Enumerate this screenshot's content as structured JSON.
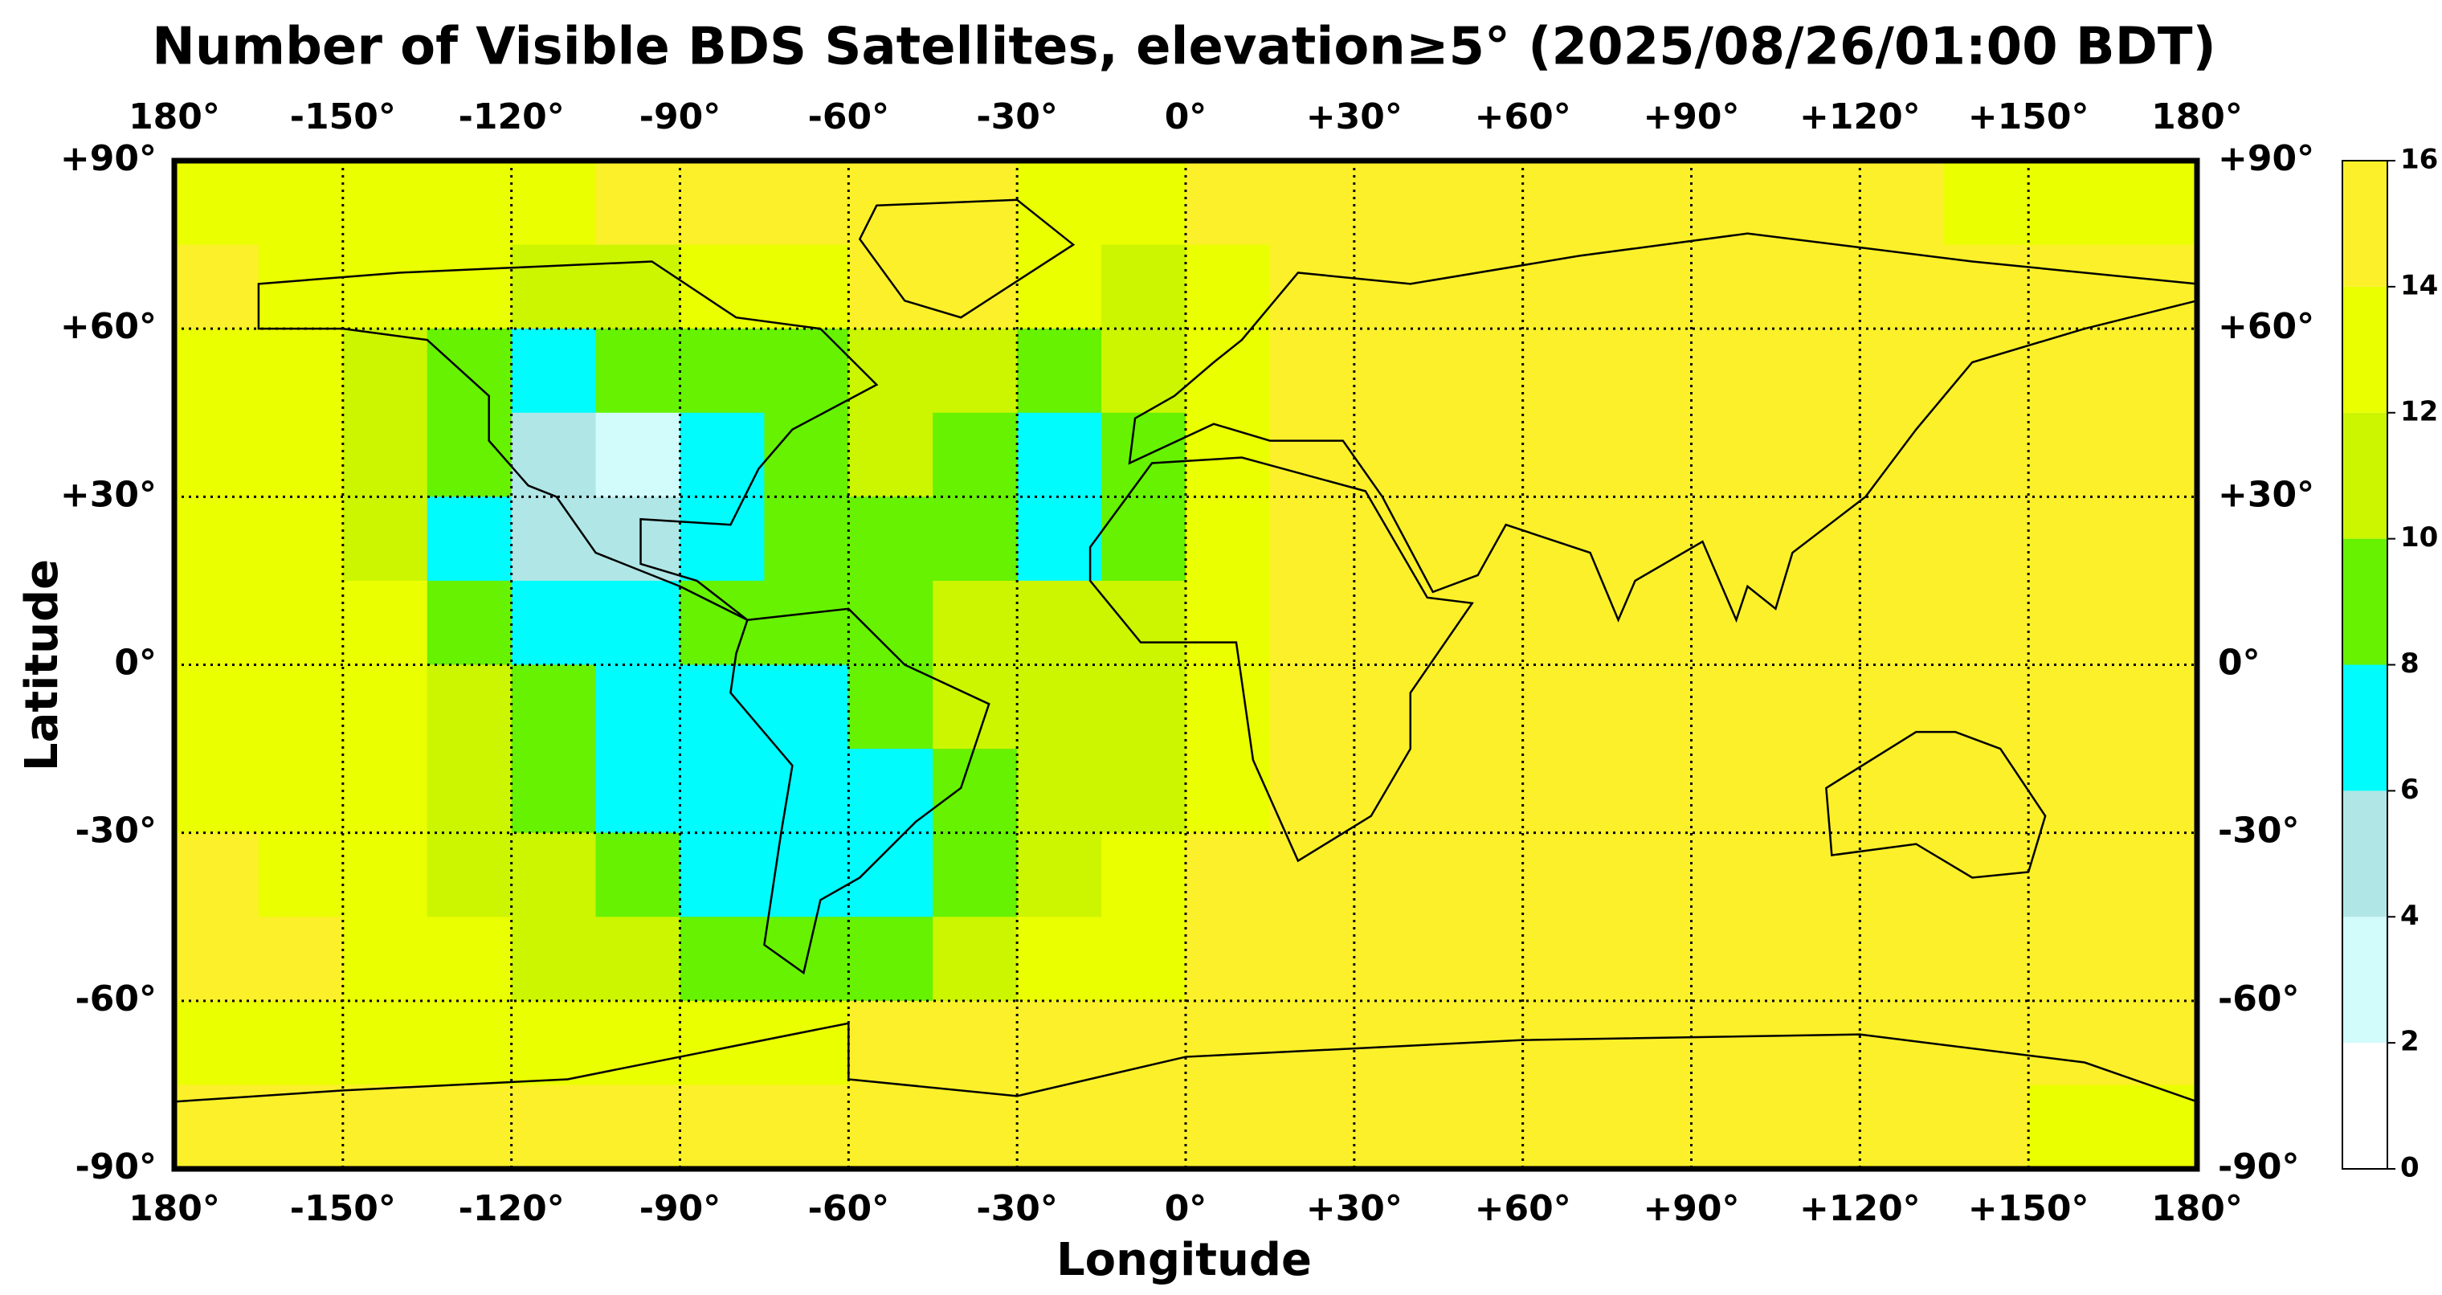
{
  "chart_data": {
    "type": "heatmap",
    "title": "Number of Visible BDS Satellites, elevation≥5° (2025/08/26/01:00 BDT)",
    "xlabel": "Longitude",
    "ylabel": "Latitude",
    "xlim": [
      -180,
      180
    ],
    "ylim": [
      -90,
      90
    ],
    "grid": true,
    "xticks": [
      {
        "value": -180,
        "label": "180°"
      },
      {
        "value": -150,
        "label": "-150°"
      },
      {
        "value": -120,
        "label": "-120°"
      },
      {
        "value": -90,
        "label": "-90°"
      },
      {
        "value": -60,
        "label": "-60°"
      },
      {
        "value": -30,
        "label": "-30°"
      },
      {
        "value": 0,
        "label": "0°"
      },
      {
        "value": 30,
        "label": "+30°"
      },
      {
        "value": 60,
        "label": "+60°"
      },
      {
        "value": 90,
        "label": "+90°"
      },
      {
        "value": 120,
        "label": "+120°"
      },
      {
        "value": 150,
        "label": "+150°"
      },
      {
        "value": 180,
        "label": "180°"
      }
    ],
    "yticks": [
      {
        "value": 90,
        "label": "+90°"
      },
      {
        "value": 60,
        "label": "+60°"
      },
      {
        "value": 30,
        "label": "+30°"
      },
      {
        "value": 0,
        "label": "0°"
      },
      {
        "value": -30,
        "label": "-30°"
      },
      {
        "value": -60,
        "label": "-60°"
      },
      {
        "value": -90,
        "label": "-90°"
      }
    ],
    "xbins": [
      -180,
      -165,
      -150,
      -135,
      -120,
      -105,
      -90,
      -75,
      -60,
      -45,
      -30,
      -15,
      0,
      15,
      30,
      45,
      60,
      75,
      90,
      105,
      120,
      135,
      150,
      165,
      180
    ],
    "ybins": [
      90,
      75,
      60,
      45,
      30,
      15,
      0,
      -15,
      -30,
      -45,
      -60,
      -75,
      -90
    ],
    "values": [
      [
        13,
        13,
        13,
        13,
        13,
        15,
        15,
        15,
        15,
        15,
        13,
        13,
        15,
        15,
        15,
        15,
        15,
        15,
        15,
        15,
        15,
        13,
        13,
        13
      ],
      [
        15,
        13,
        13,
        13,
        11,
        11,
        13,
        13,
        15,
        15,
        13,
        11,
        13,
        15,
        15,
        15,
        15,
        15,
        15,
        15,
        15,
        15,
        15,
        15
      ],
      [
        13,
        13,
        11,
        9,
        7,
        9,
        9,
        9,
        11,
        11,
        9,
        11,
        13,
        15,
        15,
        15,
        15,
        15,
        15,
        15,
        15,
        15,
        15,
        15
      ],
      [
        13,
        13,
        11,
        9,
        5,
        3,
        7,
        9,
        11,
        9,
        7,
        9,
        13,
        15,
        15,
        15,
        15,
        15,
        15,
        15,
        15,
        15,
        15,
        15
      ],
      [
        13,
        13,
        11,
        7,
        5,
        5,
        7,
        9,
        9,
        9,
        7,
        9,
        13,
        15,
        15,
        15,
        15,
        15,
        15,
        15,
        15,
        15,
        15,
        15
      ],
      [
        13,
        13,
        13,
        9,
        7,
        7,
        9,
        9,
        9,
        11,
        11,
        11,
        13,
        15,
        15,
        15,
        15,
        15,
        15,
        15,
        15,
        15,
        15,
        15
      ],
      [
        13,
        13,
        13,
        11,
        9,
        7,
        7,
        7,
        9,
        11,
        11,
        11,
        13,
        15,
        15,
        15,
        15,
        15,
        15,
        15,
        15,
        15,
        15,
        15
      ],
      [
        13,
        13,
        13,
        11,
        9,
        7,
        7,
        7,
        7,
        9,
        11,
        11,
        13,
        15,
        15,
        15,
        15,
        15,
        15,
        15,
        15,
        15,
        15,
        15
      ],
      [
        15,
        13,
        13,
        11,
        11,
        9,
        7,
        7,
        7,
        9,
        11,
        13,
        15,
        15,
        15,
        15,
        15,
        15,
        15,
        15,
        15,
        15,
        15,
        15
      ],
      [
        15,
        15,
        13,
        13,
        11,
        11,
        9,
        9,
        9,
        11,
        13,
        13,
        15,
        15,
        15,
        15,
        15,
        15,
        15,
        15,
        15,
        15,
        15,
        15
      ],
      [
        13,
        13,
        13,
        13,
        13,
        13,
        13,
        13,
        15,
        15,
        15,
        15,
        15,
        15,
        15,
        15,
        15,
        15,
        15,
        15,
        15,
        15,
        15,
        15
      ],
      [
        15,
        15,
        15,
        15,
        15,
        15,
        15,
        15,
        15,
        15,
        15,
        15,
        15,
        15,
        15,
        15,
        15,
        15,
        15,
        15,
        15,
        15,
        13,
        13
      ]
    ],
    "colorbar": {
      "levels": [
        0,
        2,
        4,
        6,
        8,
        10,
        12,
        14,
        16
      ],
      "colors": [
        "#ffffff",
        "#d2fcfc",
        "#b0e6e6",
        "#00fcfc",
        "#66f200",
        "#ccf500",
        "#eaff00",
        "#fcf02a"
      ]
    }
  }
}
